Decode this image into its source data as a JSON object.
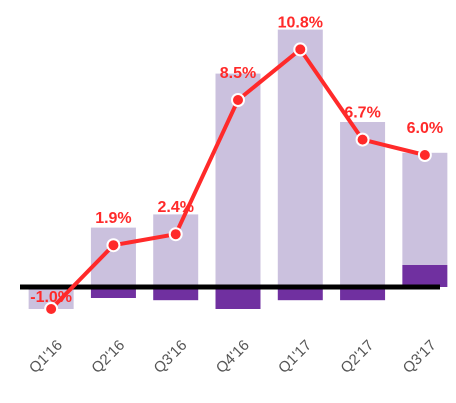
{
  "chart_data": {
    "type": "bar-line",
    "categories": [
      "Q1'16",
      "Q2'16",
      "Q3'16",
      "Q4'16",
      "Q1'17",
      "Q2'17",
      "Q3'17"
    ],
    "series": [
      {
        "type": "bar",
        "color": "#cbc1de",
        "values": [
          -1.0,
          2.7,
          3.3,
          9.7,
          11.7,
          7.5,
          5.1
        ]
      },
      {
        "type": "bar",
        "color": "#7030a0",
        "values": [
          0,
          -0.5,
          -0.6,
          -1.0,
          -0.6,
          -0.6,
          1.0
        ]
      },
      {
        "type": "line",
        "color": "#ff2a2a",
        "values": [
          -1.0,
          1.9,
          2.4,
          8.5,
          10.8,
          6.7,
          6.0
        ],
        "value_labels": [
          "-1.0%",
          "1.9%",
          "2.4%",
          "8.5%",
          "10.8%",
          "6.7%",
          "6.0%"
        ]
      }
    ],
    "ylim": [
      -1.5,
      12.5
    ]
  }
}
